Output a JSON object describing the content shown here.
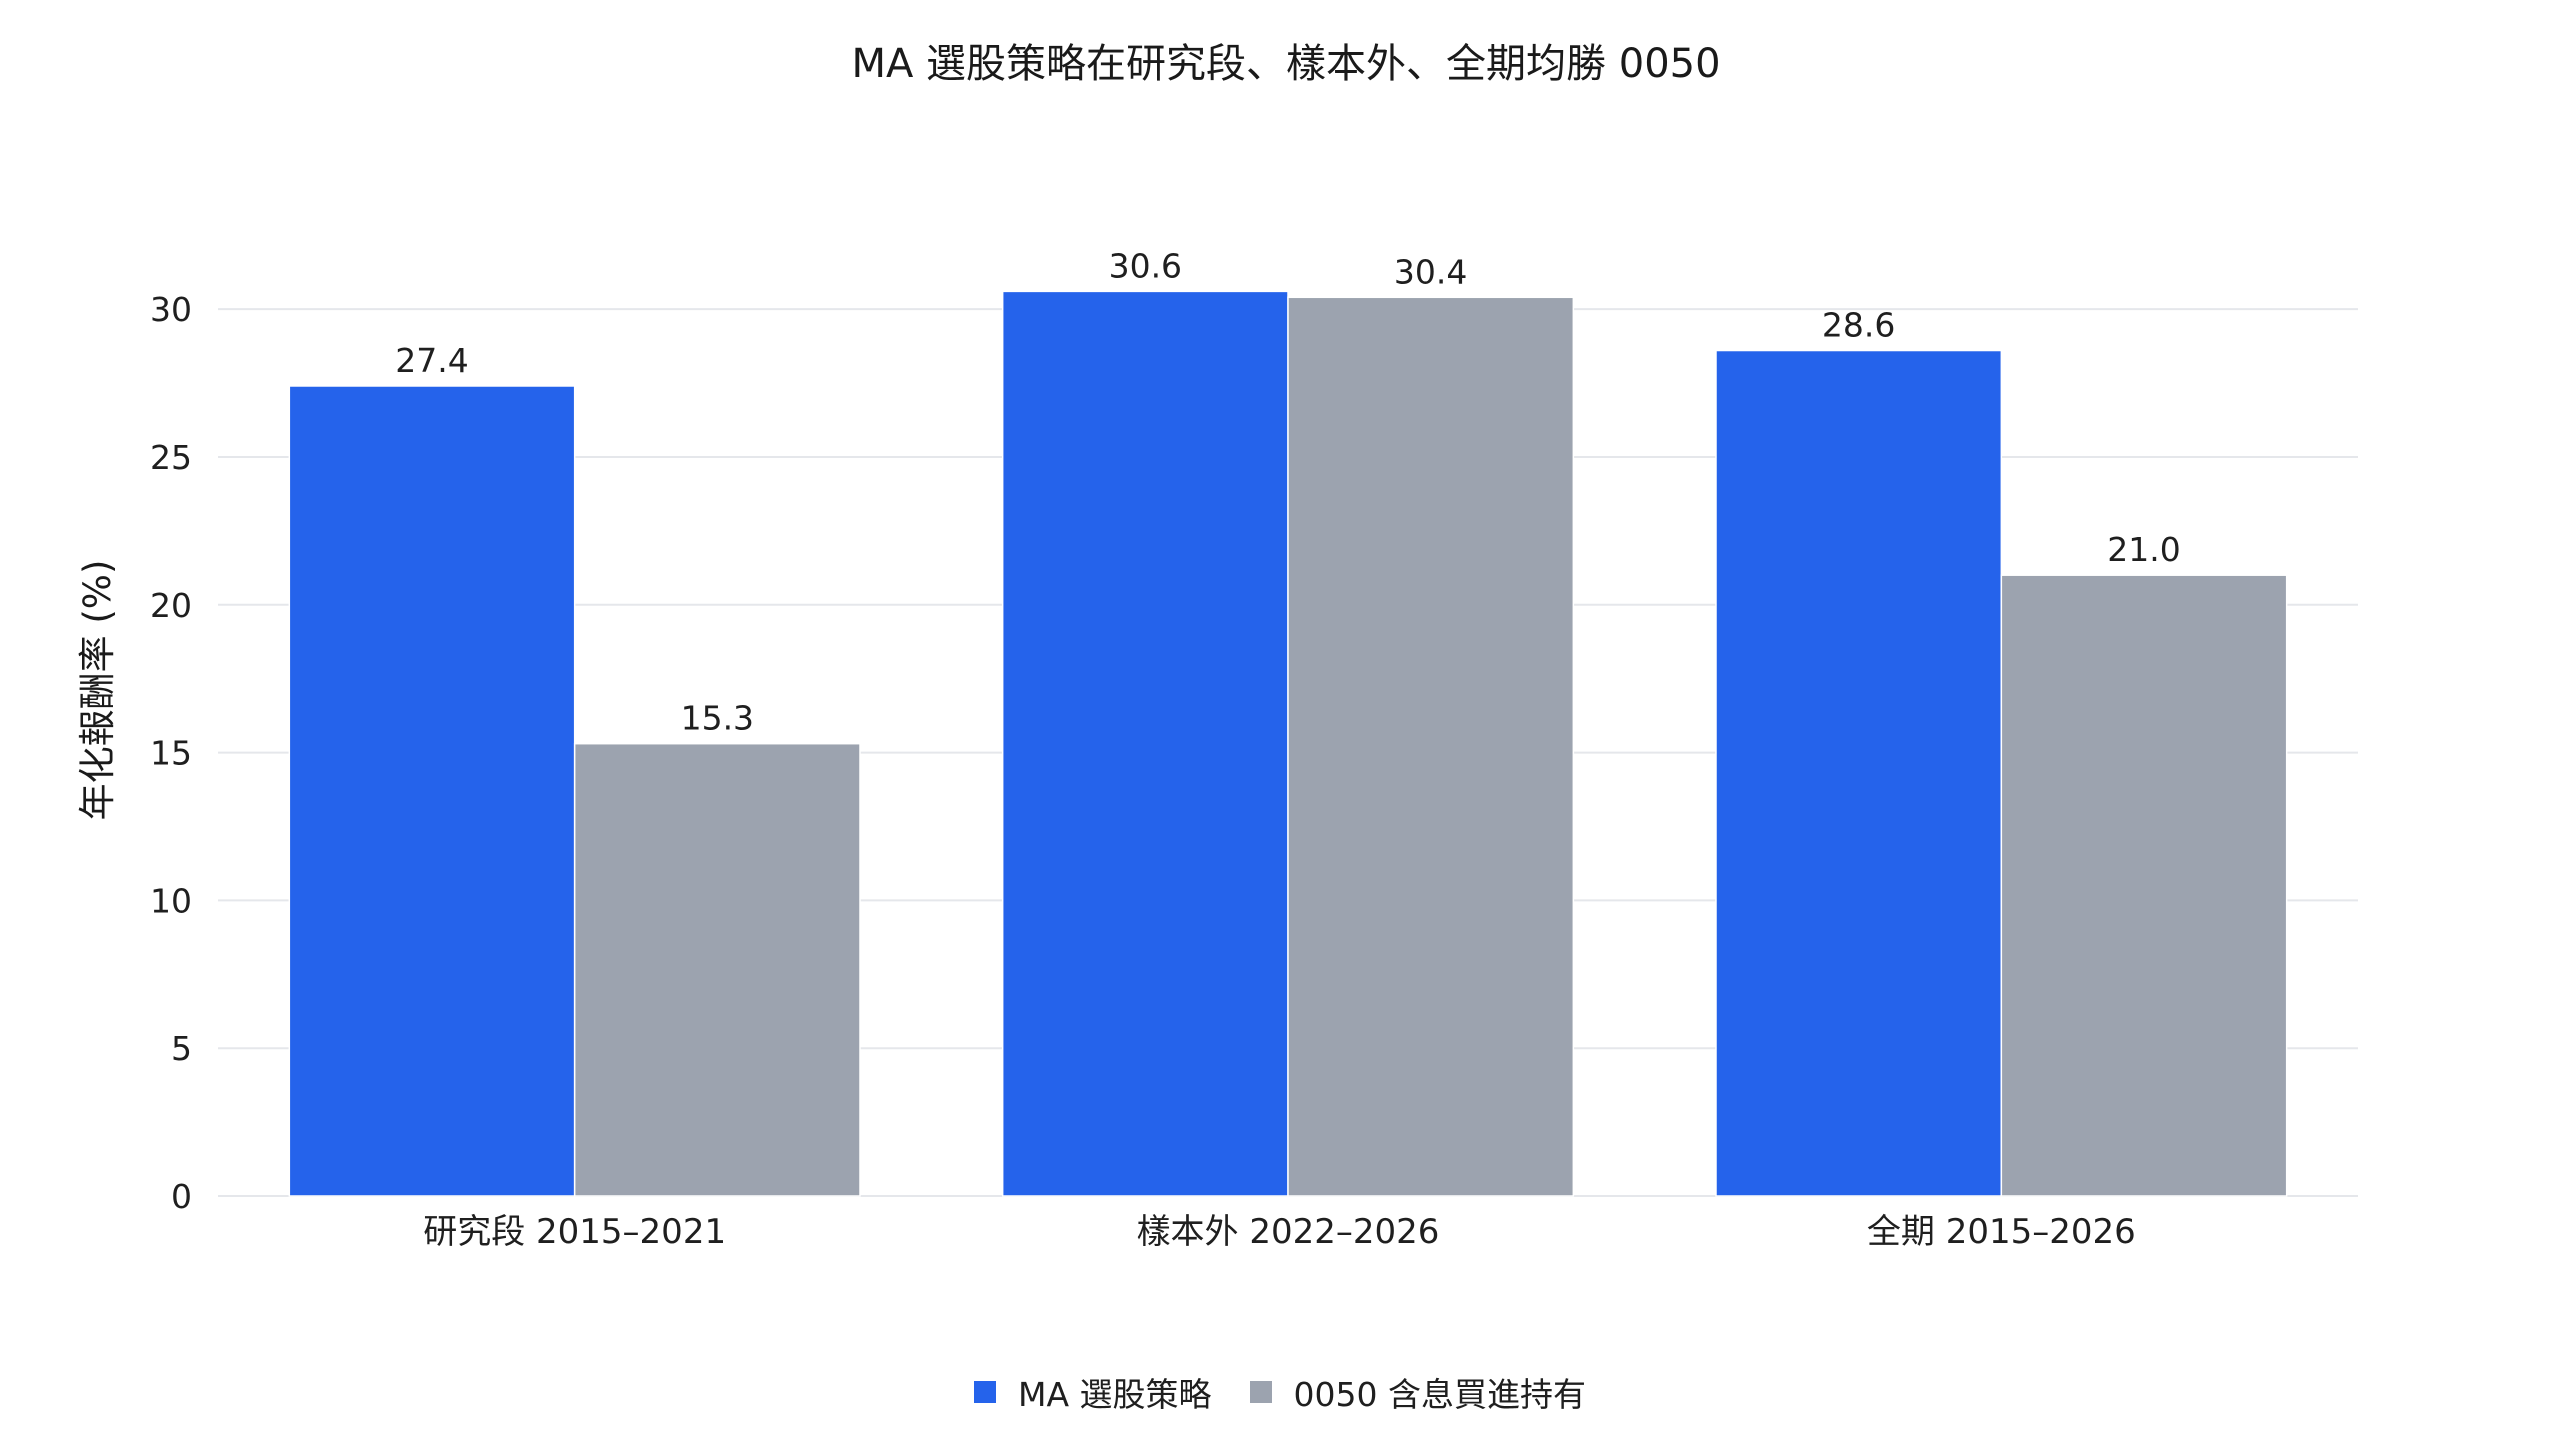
{
  "chart_data": {
    "type": "bar",
    "title": "MA 選股策略在研究段、樣本外、全期均勝 0050",
    "xlabel": "",
    "ylabel": "年化報酬率 (%)",
    "ylim": [
      0,
      32
    ],
    "yticks": [
      0,
      5,
      10,
      15,
      20,
      25,
      30
    ],
    "ytick_labels": [
      "0",
      "5",
      "10",
      "15",
      "20",
      "25",
      "30"
    ],
    "grid": true,
    "legend_position": "bottom-center",
    "categories": [
      "研究段 2015–2021",
      "樣本外 2022–2026",
      "全期 2015–2026"
    ],
    "series": [
      {
        "name": "MA 選股策略",
        "color": "#2563eb",
        "values": [
          27.4,
          30.6,
          28.6
        ],
        "labels": [
          "27.4",
          "30.6",
          "28.6"
        ]
      },
      {
        "name": "0050 含息買進持有",
        "color": "#9ca3af",
        "values": [
          15.3,
          30.4,
          21.0
        ],
        "labels": [
          "15.3",
          "30.4",
          "21.0"
        ]
      }
    ]
  }
}
